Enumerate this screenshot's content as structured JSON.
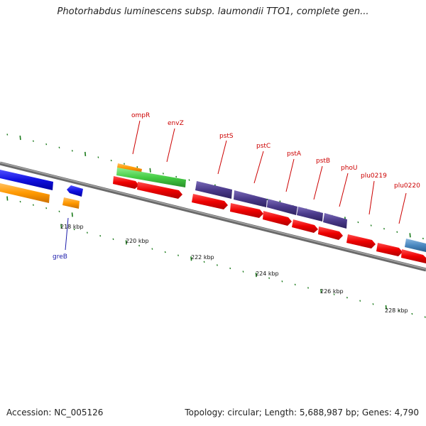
{
  "title": "Photorhabdus luminescens subsp. laumondii TTO1, complete gen...",
  "footer": {
    "accession": "Accession: NC_005126",
    "summary": "Topology: circular; Length: 5,688,987 bp; Genes: 4,790"
  },
  "scale_labels": [
    "218 kbp",
    "220 kbp",
    "222 kbp",
    "224 kbp",
    "226 kbp",
    "228 kbp"
  ],
  "gene_labels": [
    {
      "name": "ompR",
      "color": "#cc0000"
    },
    {
      "name": "envZ",
      "color": "#cc0000"
    },
    {
      "name": "pstS",
      "color": "#cc0000"
    },
    {
      "name": "pstC",
      "color": "#cc0000"
    },
    {
      "name": "pstA",
      "color": "#cc0000"
    },
    {
      "name": "pstB",
      "color": "#cc0000"
    },
    {
      "name": "phoU",
      "color": "#cc0000"
    },
    {
      "name": "plu0219",
      "color": "#cc0000"
    },
    {
      "name": "plu0220",
      "color": "#cc0000"
    },
    {
      "name": "greB",
      "color": "#1a1aaa"
    }
  ],
  "colors": {
    "backbone": "#808080",
    "cds": "#ee0000",
    "gene_blue": "#1010e0",
    "orange": "#ff9900",
    "green": "#44cc44",
    "purple": "#4a3a8a",
    "steel_blue": "#4a88c0",
    "tick": "#1a7a1a"
  }
}
